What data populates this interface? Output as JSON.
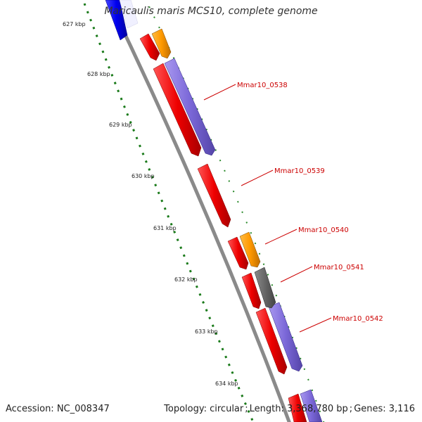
{
  "title": "Maricaulis maris MCS10, complete genome",
  "footer": {
    "accession": "Accession: NC_008347",
    "topology": "Topology: circular",
    "length": "Length: 3,368,780 bp",
    "genes": "Genes: 3,116"
  },
  "scale_labels": [
    "627 kbp",
    "628 kbp",
    "629 kbp",
    "630 kbp",
    "631 kbp",
    "632 kbp",
    "633 kbp",
    "634 kbp"
  ],
  "gene_labels": [
    "Mmar10_0538",
    "Mmar10_0539",
    "Mmar10_0540",
    "Mmar10_0541",
    "Mmar10_0542"
  ],
  "colors": {
    "backbone": "#8a8a8a",
    "red_feature": "#ee1111",
    "orange_feature": "#ff9900",
    "purple_feature": "#7b68d8",
    "blue_feature": "#0000ee",
    "gray_feature": "#666666",
    "tick": "#1a7a1a",
    "label_text": "#cc0000"
  }
}
